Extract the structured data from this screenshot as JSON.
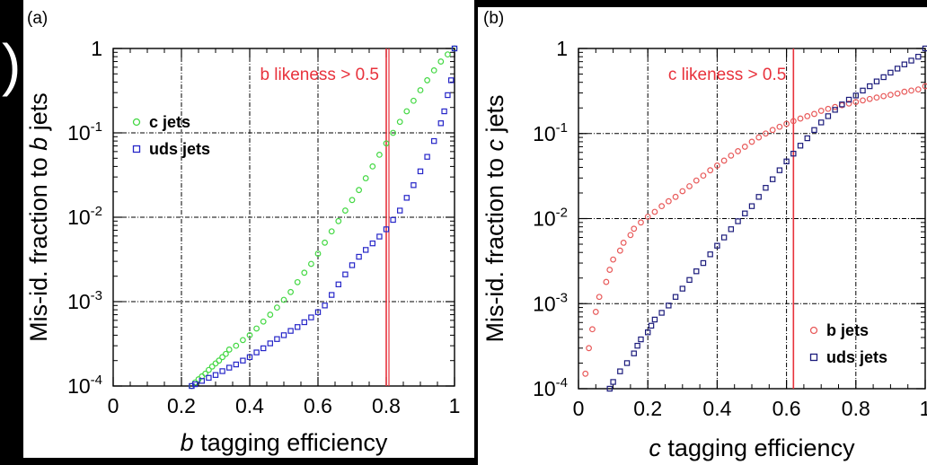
{
  "chart_data": [
    {
      "type": "scatter",
      "panel_label": "(a)",
      "xlabel_italic": "b",
      "xlabel_rest": " tagging efficiency",
      "ylabel_prefix": "Mis-id. fraction to ",
      "ylabel_italic": "b",
      "ylabel_suffix": " jets",
      "xlim": [
        0,
        1
      ],
      "ylim": [
        0.0001,
        1
      ],
      "yscale": "log",
      "xticks": [
        "0",
        "0.2",
        "0.4",
        "0.6",
        "0.8",
        "1"
      ],
      "yticks": [
        {
          "base": "1",
          "exp": ""
        },
        {
          "base": "10",
          "exp": "-1"
        },
        {
          "base": "10",
          "exp": "-2"
        },
        {
          "base": "10",
          "exp": "-3"
        },
        {
          "base": "10",
          "exp": "-4"
        }
      ],
      "grid": true,
      "legend_position": "top-left",
      "cut_line": {
        "x": 0.8,
        "label": "b likeness > 0.5",
        "color": "#e8323c"
      },
      "series": [
        {
          "name": "c jets",
          "marker": "circle",
          "color": "#43d843",
          "points": [
            [
              0.23,
              0.0001
            ],
            [
              0.24,
              0.00011
            ],
            [
              0.25,
              0.00012
            ],
            [
              0.26,
              0.00013
            ],
            [
              0.27,
              0.00014
            ],
            [
              0.28,
              0.000155
            ],
            [
              0.29,
              0.00017
            ],
            [
              0.3,
              0.000185
            ],
            [
              0.31,
              0.0002
            ],
            [
              0.32,
              0.00022
            ],
            [
              0.33,
              0.00024
            ],
            [
              0.34,
              0.00027
            ],
            [
              0.36,
              0.0003
            ],
            [
              0.38,
              0.00035
            ],
            [
              0.4,
              0.0004
            ],
            [
              0.42,
              0.00048
            ],
            [
              0.44,
              0.00058
            ],
            [
              0.46,
              0.0007
            ],
            [
              0.48,
              0.00085
            ],
            [
              0.5,
              0.00105
            ],
            [
              0.52,
              0.0013
            ],
            [
              0.54,
              0.0017
            ],
            [
              0.56,
              0.0022
            ],
            [
              0.58,
              0.0028
            ],
            [
              0.6,
              0.0037
            ],
            [
              0.62,
              0.005
            ],
            [
              0.64,
              0.0068
            ],
            [
              0.66,
              0.009
            ],
            [
              0.68,
              0.012
            ],
            [
              0.7,
              0.016
            ],
            [
              0.72,
              0.021
            ],
            [
              0.74,
              0.029
            ],
            [
              0.76,
              0.04
            ],
            [
              0.78,
              0.055
            ],
            [
              0.8,
              0.075
            ],
            [
              0.82,
              0.1
            ],
            [
              0.84,
              0.135
            ],
            [
              0.86,
              0.18
            ],
            [
              0.88,
              0.24
            ],
            [
              0.9,
              0.32
            ],
            [
              0.92,
              0.42
            ],
            [
              0.94,
              0.55
            ],
            [
              0.96,
              0.7
            ],
            [
              0.98,
              0.85
            ],
            [
              1.0,
              1.0
            ]
          ]
        },
        {
          "name": "uds jets",
          "marker": "square",
          "color": "#2626c8",
          "points": [
            [
              0.23,
              0.0001
            ],
            [
              0.24,
              0.000105
            ],
            [
              0.26,
              0.000115
            ],
            [
              0.28,
              0.000125
            ],
            [
              0.3,
              0.000135
            ],
            [
              0.32,
              0.00015
            ],
            [
              0.34,
              0.000165
            ],
            [
              0.36,
              0.00018
            ],
            [
              0.38,
              0.0002
            ],
            [
              0.4,
              0.00022
            ],
            [
              0.42,
              0.00025
            ],
            [
              0.44,
              0.00028
            ],
            [
              0.46,
              0.00032
            ],
            [
              0.48,
              0.00036
            ],
            [
              0.5,
              0.0004
            ],
            [
              0.52,
              0.00045
            ],
            [
              0.54,
              0.0005
            ],
            [
              0.56,
              0.00057
            ],
            [
              0.58,
              0.00065
            ],
            [
              0.6,
              0.00075
            ],
            [
              0.62,
              0.0009
            ],
            [
              0.64,
              0.0012
            ],
            [
              0.66,
              0.0016
            ],
            [
              0.68,
              0.0021
            ],
            [
              0.7,
              0.0027
            ],
            [
              0.72,
              0.0034
            ],
            [
              0.74,
              0.0041
            ],
            [
              0.76,
              0.0049
            ],
            [
              0.78,
              0.0059
            ],
            [
              0.8,
              0.0072
            ],
            [
              0.82,
              0.0093
            ],
            [
              0.84,
              0.012
            ],
            [
              0.86,
              0.017
            ],
            [
              0.88,
              0.024
            ],
            [
              0.9,
              0.035
            ],
            [
              0.92,
              0.052
            ],
            [
              0.94,
              0.08
            ],
            [
              0.96,
              0.13
            ],
            [
              0.97,
              0.18
            ],
            [
              0.98,
              0.28
            ],
            [
              0.99,
              0.42
            ],
            [
              1.0,
              1.0
            ]
          ]
        }
      ]
    },
    {
      "type": "scatter",
      "panel_label": "(b)",
      "xlabel_italic": "c",
      "xlabel_rest": " tagging efficiency",
      "ylabel_prefix": "Mis-id. fraction to ",
      "ylabel_italic": "c",
      "ylabel_suffix": " jets",
      "xlim": [
        0,
        1
      ],
      "ylim": [
        0.0001,
        1
      ],
      "yscale": "log",
      "xticks": [
        "0",
        "0.2",
        "0.4",
        "0.6",
        "0.8",
        "1"
      ],
      "yticks": [
        {
          "base": "1",
          "exp": ""
        },
        {
          "base": "10",
          "exp": "-1"
        },
        {
          "base": "10",
          "exp": "-2"
        },
        {
          "base": "10",
          "exp": "-3"
        },
        {
          "base": "10",
          "exp": "-4"
        }
      ],
      "grid": true,
      "legend_position": "bottom-right",
      "cut_line": {
        "x": 0.62,
        "label": "c likeness > 0.5",
        "color": "#e8323c"
      },
      "series": [
        {
          "name": "b jets",
          "marker": "circle",
          "color": "#e85a5a",
          "points": [
            [
              0.02,
              0.00015
            ],
            [
              0.03,
              0.0003
            ],
            [
              0.04,
              0.0005
            ],
            [
              0.05,
              0.0008
            ],
            [
              0.06,
              0.0012
            ],
            [
              0.08,
              0.0018
            ],
            [
              0.09,
              0.0025
            ],
            [
              0.1,
              0.0033
            ],
            [
              0.12,
              0.0042
            ],
            [
              0.13,
              0.0052
            ],
            [
              0.15,
              0.0064
            ],
            [
              0.16,
              0.0076
            ],
            [
              0.18,
              0.009
            ],
            [
              0.2,
              0.0105
            ],
            [
              0.22,
              0.012
            ],
            [
              0.24,
              0.014
            ],
            [
              0.26,
              0.016
            ],
            [
              0.28,
              0.018
            ],
            [
              0.3,
              0.021
            ],
            [
              0.32,
              0.024
            ],
            [
              0.34,
              0.028
            ],
            [
              0.36,
              0.032
            ],
            [
              0.38,
              0.037
            ],
            [
              0.4,
              0.042
            ],
            [
              0.42,
              0.048
            ],
            [
              0.44,
              0.055
            ],
            [
              0.46,
              0.062
            ],
            [
              0.48,
              0.07
            ],
            [
              0.5,
              0.08
            ],
            [
              0.52,
              0.09
            ],
            [
              0.54,
              0.1
            ],
            [
              0.56,
              0.11
            ],
            [
              0.58,
              0.12
            ],
            [
              0.6,
              0.13
            ],
            [
              0.62,
              0.14
            ],
            [
              0.64,
              0.15
            ],
            [
              0.66,
              0.16
            ],
            [
              0.68,
              0.17
            ],
            [
              0.7,
              0.185
            ],
            [
              0.72,
              0.195
            ],
            [
              0.74,
              0.205
            ],
            [
              0.76,
              0.215
            ],
            [
              0.78,
              0.225
            ],
            [
              0.8,
              0.235
            ],
            [
              0.82,
              0.245
            ],
            [
              0.84,
              0.255
            ],
            [
              0.86,
              0.265
            ],
            [
              0.88,
              0.275
            ],
            [
              0.9,
              0.285
            ],
            [
              0.92,
              0.295
            ],
            [
              0.94,
              0.31
            ],
            [
              0.96,
              0.32
            ],
            [
              0.98,
              0.33
            ],
            [
              1.0,
              0.36
            ]
          ]
        },
        {
          "name": "uds jets",
          "marker": "square",
          "color": "#1c1c7c",
          "points": [
            [
              0.09,
              0.0001
            ],
            [
              0.1,
              0.00012
            ],
            [
              0.12,
              0.00016
            ],
            [
              0.14,
              0.0002
            ],
            [
              0.16,
              0.00026
            ],
            [
              0.17,
              0.00032
            ],
            [
              0.18,
              0.00038
            ],
            [
              0.2,
              0.00046
            ],
            [
              0.21,
              0.00055
            ],
            [
              0.22,
              0.00065
            ],
            [
              0.24,
              0.00078
            ],
            [
              0.26,
              0.00095
            ],
            [
              0.28,
              0.0012
            ],
            [
              0.3,
              0.0015
            ],
            [
              0.32,
              0.0019
            ],
            [
              0.34,
              0.0024
            ],
            [
              0.36,
              0.003
            ],
            [
              0.38,
              0.0038
            ],
            [
              0.4,
              0.0048
            ],
            [
              0.42,
              0.006
            ],
            [
              0.44,
              0.0075
            ],
            [
              0.46,
              0.0093
            ],
            [
              0.48,
              0.0115
            ],
            [
              0.5,
              0.014
            ],
            [
              0.52,
              0.018
            ],
            [
              0.54,
              0.023
            ],
            [
              0.56,
              0.029
            ],
            [
              0.58,
              0.037
            ],
            [
              0.6,
              0.047
            ],
            [
              0.62,
              0.058
            ],
            [
              0.64,
              0.072
            ],
            [
              0.66,
              0.088
            ],
            [
              0.68,
              0.11
            ],
            [
              0.7,
              0.135
            ],
            [
              0.72,
              0.16
            ],
            [
              0.74,
              0.19
            ],
            [
              0.76,
              0.22
            ],
            [
              0.78,
              0.25
            ],
            [
              0.8,
              0.28
            ],
            [
              0.82,
              0.32
            ],
            [
              0.84,
              0.36
            ],
            [
              0.86,
              0.41
            ],
            [
              0.88,
              0.46
            ],
            [
              0.9,
              0.52
            ],
            [
              0.92,
              0.58
            ],
            [
              0.94,
              0.65
            ],
            [
              0.96,
              0.72
            ],
            [
              0.98,
              0.8
            ],
            [
              1.0,
              1.0
            ]
          ]
        }
      ]
    }
  ],
  "page_left_edge_glyph": ")"
}
